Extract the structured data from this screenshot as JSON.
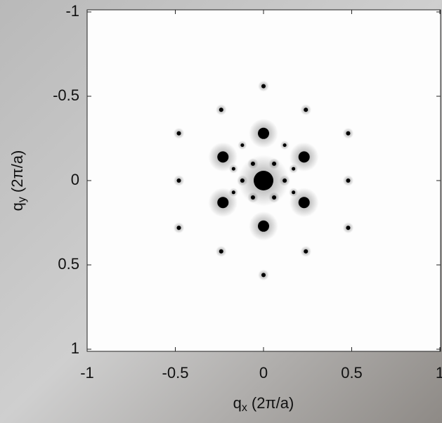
{
  "chart_data": {
    "type": "scatter",
    "xlabel": {
      "base": "q",
      "sub": "x",
      "unit": "(2π/a)"
    },
    "ylabel": {
      "base": "q",
      "sub": "y",
      "unit": "(2π/a)"
    },
    "xlim": [
      -1,
      1
    ],
    "xticks": [
      -1,
      -0.5,
      0,
      0.5,
      1
    ],
    "ylim": [
      1,
      -1
    ],
    "yticks": [
      -1,
      -0.5,
      0,
      0.5,
      1
    ],
    "color": "#000000",
    "x": [
      0,
      0,
      0.23,
      0.23,
      0,
      -0.23,
      -0.23,
      0,
      0,
      -0.24,
      0.24,
      -0.24,
      0.24,
      -0.48,
      0.48,
      -0.48,
      0.48,
      -0.48,
      0.48,
      -0.12,
      0.12,
      -0.06,
      0.06,
      -0.06,
      0.06,
      -0.12,
      0.12,
      -0.17,
      0.17,
      -0.17,
      0.17
    ],
    "y": [
      0,
      -0.28,
      -0.14,
      0.13,
      0.27,
      0.13,
      -0.14,
      -0.56,
      0.56,
      -0.42,
      -0.42,
      0.42,
      0.42,
      -0.28,
      -0.28,
      0,
      0,
      0.28,
      0.28,
      0,
      0,
      -0.1,
      -0.1,
      0.1,
      0.1,
      -0.21,
      -0.21,
      -0.07,
      -0.07,
      0.07,
      0.07
    ],
    "size": [
      14,
      8,
      8,
      8,
      8,
      8,
      8,
      3,
      3,
      3,
      3,
      3,
      3,
      3,
      3,
      3,
      3,
      3,
      3,
      3,
      3,
      3,
      3,
      3,
      3,
      2.5,
      2.5,
      2.5,
      2.5,
      2.5,
      2.5
    ]
  }
}
